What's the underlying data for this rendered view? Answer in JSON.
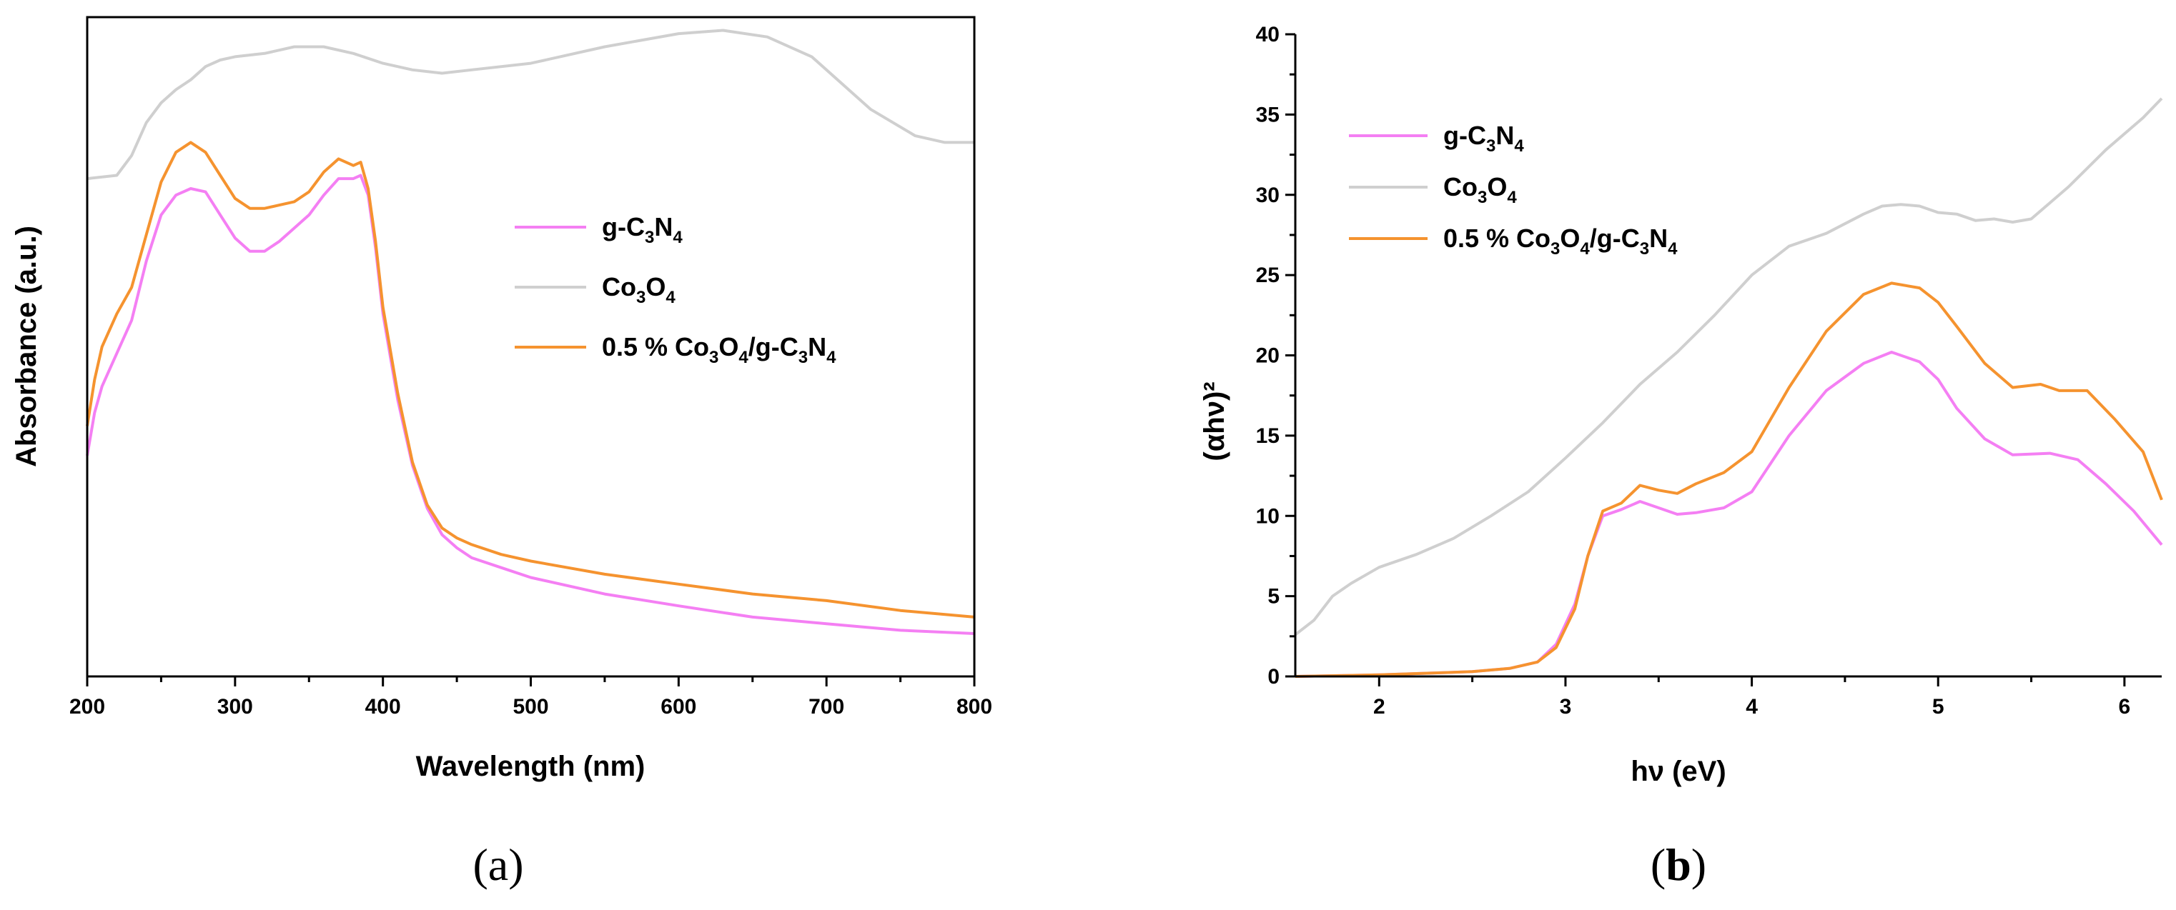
{
  "colors": {
    "g_C3N4": "#f47ff3",
    "Co3O4": "#cfcfcf",
    "composite": "#f5932f",
    "axis": "#000000"
  },
  "chart_data": [
    {
      "type": "line",
      "panel": "a",
      "panel_label": "(a)",
      "xlabel": "Wavelength (nm)",
      "ylabel": "Absorbance (a.u.)",
      "xlim": [
        200,
        800
      ],
      "ylim": [
        0,
        1.0
      ],
      "x_ticks": [
        200,
        300,
        400,
        500,
        600,
        700,
        800
      ],
      "x_tick_labels": [
        "200",
        "300",
        "400",
        "500",
        "600",
        "700",
        "800"
      ],
      "y_ticks_shown": false,
      "legend": {
        "placement": "center-right",
        "entries": [
          {
            "series": "g-C3N4",
            "parts": [
              [
                "g-C",
                ""
              ],
              [
                "3",
                "sub"
              ],
              [
                "N",
                ""
              ],
              [
                "4",
                "sub"
              ]
            ]
          },
          {
            "series": "Co3O4",
            "parts": [
              [
                "Co",
                ""
              ],
              [
                "3",
                "sub"
              ],
              [
                "O",
                ""
              ],
              [
                "4",
                "sub"
              ]
            ]
          },
          {
            "series": "0.5 % Co3O4/g-C3N4",
            "parts": [
              [
                "0.5 % Co",
                ""
              ],
              [
                "3",
                "sub"
              ],
              [
                "O",
                ""
              ],
              [
                "4",
                "sub"
              ],
              [
                "/g-C",
                ""
              ],
              [
                "3",
                "sub"
              ],
              [
                "N",
                ""
              ],
              [
                "4",
                "sub"
              ]
            ]
          }
        ]
      },
      "series": [
        {
          "name": "g-C3N4",
          "color_key": "g_C3N4",
          "x": [
            200,
            205,
            210,
            220,
            230,
            240,
            250,
            260,
            270,
            280,
            290,
            300,
            310,
            320,
            330,
            340,
            350,
            360,
            370,
            380,
            385,
            390,
            395,
            400,
            410,
            420,
            430,
            440,
            450,
            460,
            480,
            500,
            550,
            600,
            650,
            700,
            750,
            800
          ],
          "y": [
            0.335,
            0.4,
            0.44,
            0.49,
            0.54,
            0.63,
            0.7,
            0.73,
            0.74,
            0.735,
            0.7,
            0.665,
            0.645,
            0.645,
            0.66,
            0.68,
            0.7,
            0.73,
            0.755,
            0.755,
            0.76,
            0.73,
            0.65,
            0.55,
            0.42,
            0.32,
            0.255,
            0.215,
            0.195,
            0.18,
            0.165,
            0.15,
            0.125,
            0.107,
            0.09,
            0.08,
            0.07,
            0.065
          ]
        },
        {
          "name": "Co3O4",
          "color_key": "Co3O4",
          "x": [
            200,
            220,
            230,
            240,
            250,
            260,
            270,
            280,
            290,
            300,
            320,
            340,
            360,
            380,
            400,
            420,
            440,
            460,
            500,
            550,
            600,
            630,
            660,
            690,
            710,
            730,
            760,
            780,
            800
          ],
          "y": [
            0.755,
            0.76,
            0.79,
            0.84,
            0.87,
            0.89,
            0.905,
            0.925,
            0.935,
            0.94,
            0.945,
            0.955,
            0.955,
            0.945,
            0.93,
            0.92,
            0.915,
            0.92,
            0.93,
            0.955,
            0.975,
            0.98,
            0.97,
            0.94,
            0.9,
            0.86,
            0.82,
            0.81,
            0.81
          ]
        },
        {
          "name": "0.5 % Co3O4/g-C3N4",
          "color_key": "composite",
          "x": [
            200,
            205,
            210,
            220,
            230,
            240,
            250,
            260,
            270,
            280,
            290,
            300,
            310,
            320,
            330,
            340,
            350,
            360,
            370,
            380,
            385,
            390,
            395,
            400,
            410,
            420,
            430,
            440,
            450,
            460,
            480,
            500,
            550,
            600,
            650,
            700,
            750,
            800
          ],
          "y": [
            0.38,
            0.45,
            0.5,
            0.55,
            0.59,
            0.67,
            0.75,
            0.795,
            0.81,
            0.795,
            0.76,
            0.725,
            0.71,
            0.71,
            0.715,
            0.72,
            0.735,
            0.765,
            0.785,
            0.775,
            0.78,
            0.74,
            0.66,
            0.56,
            0.43,
            0.325,
            0.26,
            0.225,
            0.21,
            0.2,
            0.185,
            0.175,
            0.155,
            0.14,
            0.125,
            0.115,
            0.1,
            0.09
          ]
        }
      ]
    },
    {
      "type": "line",
      "panel": "b",
      "panel_label": "(b)",
      "xlabel": "hν (eV)",
      "ylabel": "(αhν)²",
      "xlim": [
        1.55,
        6.2
      ],
      "ylim": [
        0,
        40
      ],
      "x_ticks": [
        2,
        3,
        4,
        5,
        6
      ],
      "x_tick_labels": [
        "2",
        "3",
        "4",
        "5",
        "6"
      ],
      "y_ticks": [
        0,
        5,
        10,
        15,
        20,
        25,
        30,
        35,
        40
      ],
      "y_tick_labels": [
        "0",
        "5",
        "10",
        "15",
        "20",
        "25",
        "30",
        "35",
        "40"
      ],
      "legend": {
        "placement": "top-left",
        "entries": [
          {
            "series": "g-C3N4",
            "parts": [
              [
                "g-C",
                ""
              ],
              [
                "3",
                "sub"
              ],
              [
                "N",
                ""
              ],
              [
                "4",
                "sub"
              ]
            ]
          },
          {
            "series": "Co3O4",
            "parts": [
              [
                "Co",
                ""
              ],
              [
                "3",
                "sub"
              ],
              [
                "O",
                ""
              ],
              [
                "4",
                "sub"
              ]
            ]
          },
          {
            "series": "0.5 % Co3O4/g-C3N4",
            "parts": [
              [
                "0.5 % Co",
                ""
              ],
              [
                "3",
                "sub"
              ],
              [
                "O",
                ""
              ],
              [
                "4",
                "sub"
              ],
              [
                "/g-C",
                ""
              ],
              [
                "3",
                "sub"
              ],
              [
                "N",
                ""
              ],
              [
                "4",
                "sub"
              ]
            ]
          }
        ]
      },
      "series": [
        {
          "name": "g-C3N4",
          "color_key": "g_C3N4",
          "x": [
            1.55,
            2.0,
            2.5,
            2.7,
            2.85,
            2.95,
            3.05,
            3.12,
            3.2,
            3.3,
            3.4,
            3.5,
            3.6,
            3.7,
            3.85,
            4.0,
            4.2,
            4.4,
            4.6,
            4.75,
            4.9,
            5.0,
            5.1,
            5.25,
            5.4,
            5.6,
            5.75,
            5.9,
            6.05,
            6.2
          ],
          "y": [
            0.0,
            0.1,
            0.3,
            0.5,
            0.9,
            2.0,
            4.5,
            7.5,
            10.0,
            10.4,
            10.9,
            10.5,
            10.1,
            10.2,
            10.5,
            11.5,
            15.0,
            17.8,
            19.5,
            20.2,
            19.6,
            18.5,
            16.7,
            14.8,
            13.8,
            13.9,
            13.5,
            12.0,
            10.3,
            8.2
          ]
        },
        {
          "name": "Co3O4",
          "color_key": "Co3O4",
          "x": [
            1.55,
            1.65,
            1.75,
            1.85,
            2.0,
            2.2,
            2.4,
            2.6,
            2.8,
            3.0,
            3.2,
            3.4,
            3.6,
            3.8,
            4.0,
            4.2,
            4.4,
            4.6,
            4.7,
            4.8,
            4.9,
            5.0,
            5.1,
            5.2,
            5.3,
            5.4,
            5.5,
            5.7,
            5.9,
            6.1,
            6.2
          ],
          "y": [
            2.6,
            3.5,
            5.0,
            5.8,
            6.8,
            7.6,
            8.6,
            10.0,
            11.5,
            13.6,
            15.8,
            18.2,
            20.2,
            22.5,
            25.0,
            26.8,
            27.6,
            28.8,
            29.3,
            29.4,
            29.3,
            28.9,
            28.8,
            28.4,
            28.5,
            28.3,
            28.5,
            30.5,
            32.8,
            34.8,
            36.0
          ]
        },
        {
          "name": "0.5 % Co3O4/g-C3N4",
          "color_key": "composite",
          "x": [
            1.55,
            2.0,
            2.5,
            2.7,
            2.85,
            2.95,
            3.05,
            3.12,
            3.2,
            3.3,
            3.4,
            3.5,
            3.6,
            3.7,
            3.85,
            4.0,
            4.2,
            4.4,
            4.6,
            4.75,
            4.9,
            5.0,
            5.1,
            5.25,
            5.4,
            5.55,
            5.65,
            5.8,
            5.95,
            6.1,
            6.2
          ],
          "y": [
            0.0,
            0.1,
            0.3,
            0.5,
            0.9,
            1.8,
            4.2,
            7.5,
            10.3,
            10.8,
            11.9,
            11.6,
            11.4,
            12.0,
            12.7,
            14.0,
            18.0,
            21.5,
            23.8,
            24.5,
            24.2,
            23.3,
            21.8,
            19.5,
            18.0,
            18.2,
            17.8,
            17.8,
            16.0,
            14.0,
            11.0
          ]
        }
      ]
    }
  ]
}
